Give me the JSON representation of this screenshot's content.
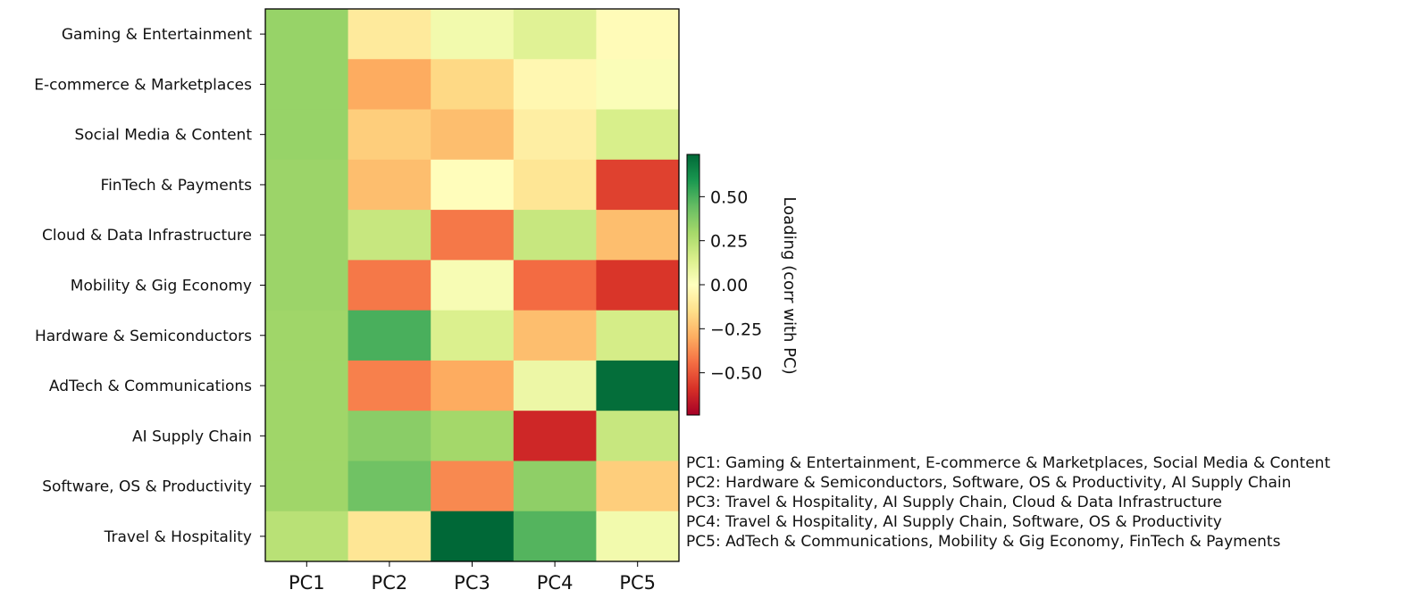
{
  "chart_data": {
    "type": "heatmap",
    "rows": [
      "Gaming & Entertainment",
      "E-commerce & Marketplaces",
      "Social Media & Content",
      "FinTech & Payments",
      "Cloud & Data Infrastructure",
      "Mobility & Gig Economy",
      "Hardware & Semiconductors",
      "AdTech & Communications",
      "AI Supply Chain",
      "Software, OS & Productivity",
      "Travel & Hospitality"
    ],
    "columns": [
      "PC1",
      "PC2",
      "PC3",
      "PC4",
      "PC5"
    ],
    "values": [
      [
        0.33,
        -0.1,
        0.05,
        0.12,
        -0.02
      ],
      [
        0.33,
        -0.3,
        -0.17,
        -0.04,
        0.02
      ],
      [
        0.33,
        -0.2,
        -0.25,
        -0.08,
        0.15
      ],
      [
        0.32,
        -0.25,
        -0.01,
        -0.12,
        -0.55
      ],
      [
        0.32,
        0.2,
        -0.42,
        0.2,
        -0.25
      ],
      [
        0.32,
        -0.42,
        0.03,
        -0.45,
        -0.58
      ],
      [
        0.31,
        0.5,
        0.14,
        -0.25,
        0.16
      ],
      [
        0.31,
        -0.4,
        -0.3,
        0.07,
        0.72
      ],
      [
        0.31,
        0.36,
        0.3,
        -0.62,
        0.2
      ],
      [
        0.31,
        0.42,
        -0.38,
        0.35,
        -0.2
      ],
      [
        0.24,
        -0.12,
        0.74,
        0.48,
        0.05
      ]
    ],
    "colorbar": {
      "label": "Loading (corr with PC)",
      "ticks": [
        "0.50",
        "0.25",
        "0.00",
        "−0.25",
        "−0.50"
      ],
      "tick_values": [
        0.5,
        0.25,
        0.0,
        -0.25,
        -0.5
      ],
      "range": [
        -0.74,
        0.74
      ],
      "colormap": "RdYlGn"
    },
    "annotations": [
      "PC1: Gaming & Entertainment, E-commerce & Marketplaces, Social Media & Content",
      "PC2: Hardware & Semiconductors, Software, OS & Productivity, AI Supply Chain",
      "PC3: Travel & Hospitality, AI Supply Chain, Cloud & Data Infrastructure",
      "PC4: Travel & Hospitality, AI Supply Chain, Software, OS & Productivity",
      "PC5: AdTech & Communications, Mobility & Gig Economy, FinTech & Payments"
    ]
  }
}
